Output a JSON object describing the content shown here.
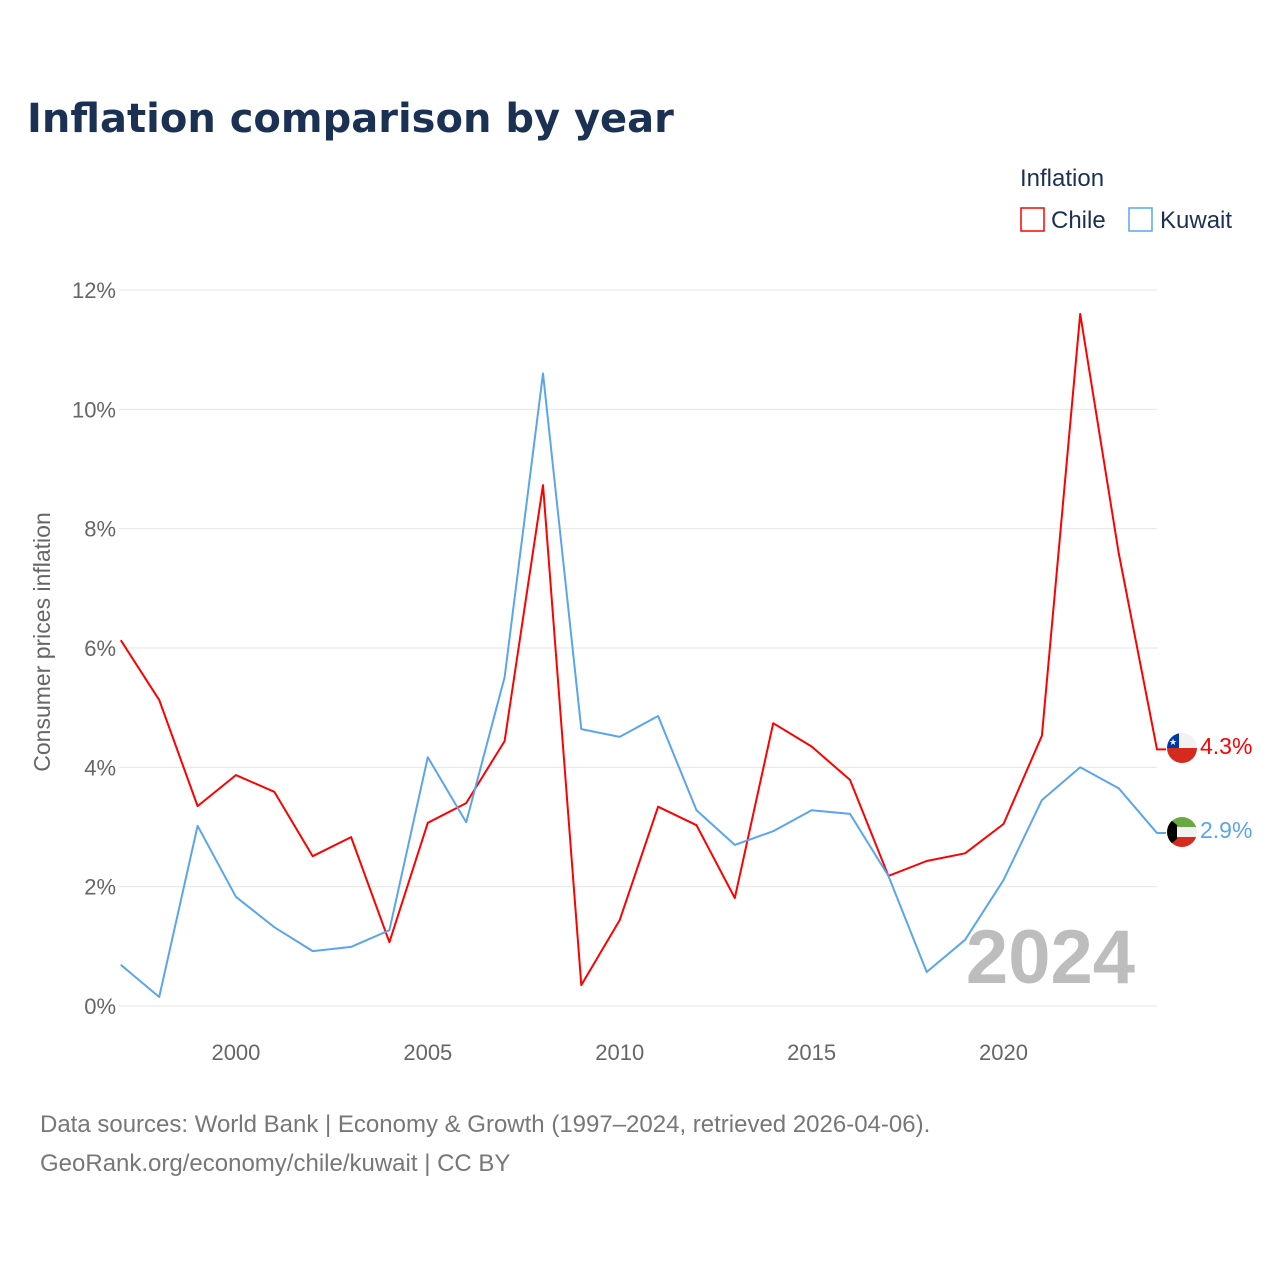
{
  "chart_data": {
    "type": "line",
    "title": "Inflation comparison by year",
    "xlabel": "",
    "ylabel": "Consumer prices inflation",
    "xlim": [
      1997,
      2024
    ],
    "ylim": [
      0,
      12
    ],
    "y_ticks": [
      0,
      2,
      4,
      6,
      8,
      10,
      12
    ],
    "y_tick_labels": [
      "0%",
      "2%",
      "4%",
      "6%",
      "8%",
      "10%",
      "12%"
    ],
    "x_ticks": [
      2000,
      2005,
      2010,
      2015,
      2020
    ],
    "x_tick_labels": [
      "2000",
      "2005",
      "2010",
      "2015",
      "2020"
    ],
    "grid": true,
    "legend": {
      "title": "Inflation",
      "placement": "top-right"
    },
    "x": [
      1997,
      1998,
      1999,
      2000,
      2001,
      2002,
      2003,
      2004,
      2005,
      2006,
      2007,
      2008,
      2009,
      2010,
      2011,
      2012,
      2013,
      2014,
      2015,
      2016,
      2017,
      2018,
      2019,
      2020,
      2021,
      2022,
      2023,
      2024
    ],
    "series": [
      {
        "name": "Chile",
        "color": "#ff0000",
        "end_label": "4.3%",
        "values": [
          6.13,
          5.13,
          3.35,
          3.87,
          3.59,
          2.51,
          2.83,
          1.07,
          3.07,
          3.4,
          4.44,
          8.73,
          0.35,
          1.44,
          3.34,
          3.03,
          1.81,
          4.74,
          4.35,
          3.79,
          2.18,
          2.43,
          2.56,
          3.05,
          4.53,
          11.6,
          7.6,
          4.3
        ]
      },
      {
        "name": "Kuwait",
        "color": "#5aa5ec",
        "end_label": "2.9%",
        "values": [
          0.69,
          0.15,
          3.02,
          1.83,
          1.32,
          0.92,
          0.99,
          1.27,
          4.17,
          3.08,
          5.51,
          10.6,
          4.64,
          4.51,
          4.86,
          3.28,
          2.7,
          2.93,
          3.28,
          3.22,
          2.18,
          0.57,
          1.11,
          2.11,
          3.45,
          4.0,
          3.65,
          2.9
        ]
      }
    ],
    "annotation": "2024"
  },
  "footer": {
    "line1": "Data sources: World Bank | Economy & Growth (1997–2024, retrieved 2026-04-06).",
    "line2": "GeoRank.org/economy/chile/kuwait | CC BY"
  }
}
